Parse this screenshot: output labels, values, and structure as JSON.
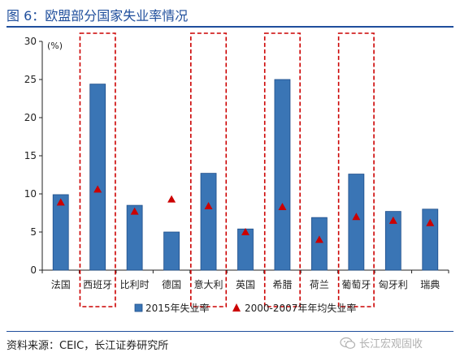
{
  "title": "图 6：欧盟部分国家失业率情况",
  "source": "资料来源：CEIC，长江证券研究所",
  "watermark": {
    "text": "长江宏观固收",
    "icon": "wechat-icon"
  },
  "colors": {
    "bar": "#3a75b5",
    "bar_edge": "#1f4e8a",
    "marker": "#cc0000",
    "highlight": "#cc0000",
    "title": "#1f4e9c"
  },
  "chart_data": {
    "type": "bar",
    "title": "",
    "ylabel": "(%)",
    "xlabel": "",
    "ylim": [
      0,
      30
    ],
    "yticks": [
      0,
      5,
      10,
      15,
      20,
      25,
      30
    ],
    "categories": [
      "法国",
      "西班牙",
      "比利时",
      "德国",
      "意大利",
      "英国",
      "希腊",
      "荷兰",
      "葡萄牙",
      "匈牙利",
      "瑞典"
    ],
    "series": [
      {
        "name": "2015年失业率",
        "kind": "bar",
        "values": [
          9.9,
          24.4,
          8.5,
          5.0,
          12.7,
          5.4,
          25.0,
          6.9,
          12.6,
          7.7,
          8.0
        ]
      },
      {
        "name": "2000-2007年年均失业率",
        "kind": "marker",
        "values": [
          8.9,
          10.6,
          7.7,
          9.3,
          8.4,
          5.0,
          8.3,
          4.0,
          7.0,
          6.5,
          6.2
        ]
      }
    ],
    "highlighted": [
      "西班牙",
      "意大利",
      "希腊",
      "葡萄牙"
    ],
    "legend": "bottom",
    "grid": false
  }
}
